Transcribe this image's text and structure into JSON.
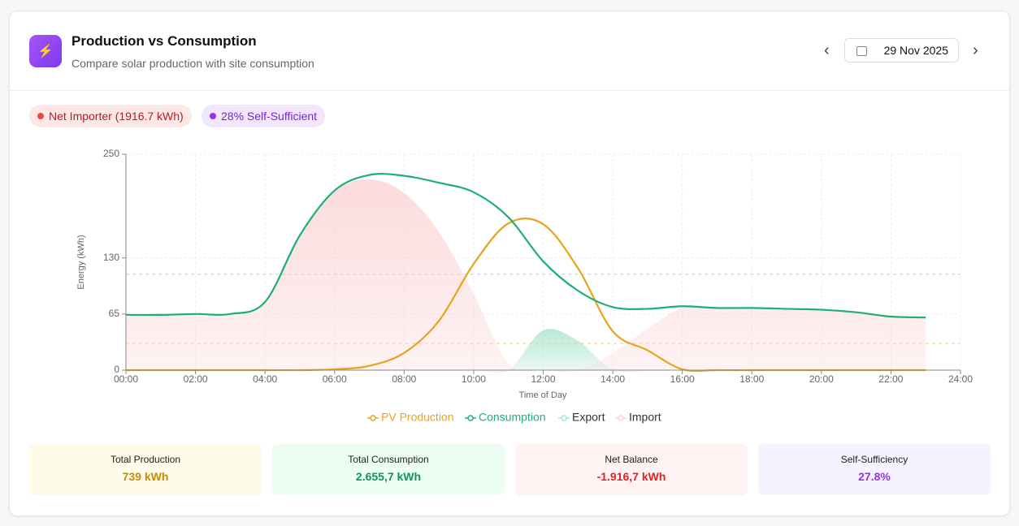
{
  "header": {
    "icon": "⚡",
    "title": "Production vs Consumption",
    "subtitle": "Compare solar production with site consumption",
    "date": "29 Nov 2025",
    "prev": "‹",
    "next": "›"
  },
  "badges": [
    {
      "text": "Net Importer (1916.7 kWh)",
      "color": "#ef4444"
    },
    {
      "text": "28% Self-Sufficient",
      "color": "#9333ea"
    }
  ],
  "chart_data": {
    "type": "line",
    "y_label": "Energy (kWh)",
    "x_label": "Time of Day",
    "x": [
      0,
      1,
      2,
      3,
      4,
      5,
      6,
      7,
      8,
      9,
      10,
      11,
      12,
      13,
      14,
      15,
      16,
      17,
      18,
      19,
      20,
      21,
      22,
      23
    ],
    "series": [
      {
        "name": "PV Production",
        "color": "#eaa21c",
        "kind": "line",
        "values": [
          0,
          0,
          0,
          0,
          0,
          0,
          1,
          5,
          20,
          57,
          123,
          170,
          169,
          118,
          45,
          23,
          1,
          0,
          0,
          0,
          0,
          0,
          0,
          0
        ]
      },
      {
        "name": "Consumption",
        "color": "#1fae78",
        "kind": "line",
        "values": [
          64,
          64,
          65,
          65,
          79,
          156,
          208,
          226,
          225,
          217,
          206,
          177,
          126,
          92,
          73,
          71,
          74,
          72,
          72,
          71,
          70,
          67,
          62,
          61
        ]
      },
      {
        "name": "Export",
        "color": "#a7e3cc",
        "kind": "area",
        "values": [
          0,
          0,
          0,
          0,
          0,
          0,
          0,
          0,
          0,
          0,
          0,
          0,
          46,
          34,
          0,
          0,
          0,
          0,
          0,
          0,
          0,
          0,
          0,
          0
        ]
      },
      {
        "name": "Import",
        "color": "#fbcfd0",
        "kind": "area",
        "values": [
          62,
          62,
          62,
          62,
          78,
          155,
          207,
          221,
          205,
          160,
          88,
          8,
          0,
          0,
          20,
          48,
          72,
          72,
          71,
          70,
          69,
          66,
          61,
          60
        ]
      }
    ],
    "reference_lines": [
      {
        "value": 111,
        "color": "#9bd9d0"
      },
      {
        "value": 31,
        "color": "#f5c97a"
      }
    ],
    "xlim": [
      0,
      24
    ],
    "ylim": [
      0,
      250
    ],
    "xticks": [
      {
        "value": 0,
        "label": "00:00"
      },
      {
        "value": 2,
        "label": "02:00"
      },
      {
        "value": 4,
        "label": "04:00"
      },
      {
        "value": 6,
        "label": "06:00"
      },
      {
        "value": 8,
        "label": "08:00"
      },
      {
        "value": 10,
        "label": "10:00"
      },
      {
        "value": 12,
        "label": "12:00"
      },
      {
        "value": 14,
        "label": "14:00"
      },
      {
        "value": 16,
        "label": "16:00"
      },
      {
        "value": 18,
        "label": "18:00"
      },
      {
        "value": 20,
        "label": "20:00"
      },
      {
        "value": 22,
        "label": "22:00"
      },
      {
        "value": 24,
        "label": "24:00"
      }
    ],
    "yticks": [
      0,
      65,
      130,
      250
    ],
    "grid": true,
    "legend": "bottom"
  },
  "stats": [
    {
      "label": "Total Production",
      "value": "739 kWh",
      "bg": "#fefbe8",
      "color": "#ca8a04"
    },
    {
      "label": "Total Consumption",
      "value": "2.655,7 kWh",
      "bg": "#ecfdf4",
      "color": "#15935f"
    },
    {
      "label": "Net Balance",
      "value": "-1.916,7 kWh",
      "bg": "#fef2f2",
      "color": "#dc2626"
    },
    {
      "label": "Self-Sufficiency",
      "value": "27.8%",
      "bg": "#f5f3ff",
      "color": "#9333ea"
    }
  ]
}
